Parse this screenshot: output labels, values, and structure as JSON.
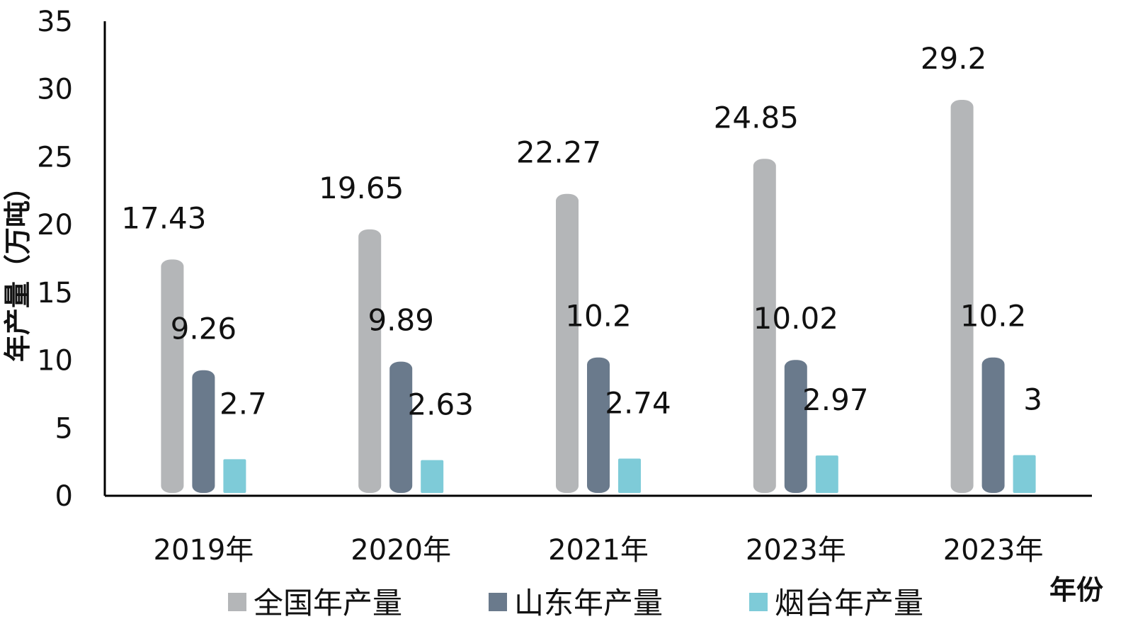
{
  "chart_data": {
    "type": "bar",
    "categories": [
      "2019年",
      "2020年",
      "2021年",
      "2023年",
      "2023年"
    ],
    "series": [
      {
        "name": "全国年产量",
        "values": [
          17.43,
          19.65,
          22.27,
          24.85,
          29.2
        ],
        "labels": [
          "17.43",
          "19.65",
          "22.27",
          "24.85",
          "29.2"
        ],
        "color": "#b4b6b8"
      },
      {
        "name": "山东年产量",
        "values": [
          9.26,
          9.89,
          10.2,
          10.02,
          10.2
        ],
        "labels": [
          "9.26",
          "9.89",
          "10.2",
          "10.02",
          "10.2"
        ],
        "color": "#6a7a8c"
      },
      {
        "name": "烟台年产量",
        "values": [
          2.7,
          2.63,
          2.74,
          2.97,
          3
        ],
        "labels": [
          "2.7",
          "2.63",
          "2.74",
          "2.97",
          "3"
        ],
        "color": "#7ecbd8"
      }
    ],
    "ylabel": "年产量（万吨）",
    "xlabel": "年份",
    "ylim": [
      0,
      35
    ],
    "yticks": [
      0,
      5,
      10,
      15,
      20,
      25,
      30,
      35
    ],
    "legend_position": "bottom",
    "grid": false
  }
}
